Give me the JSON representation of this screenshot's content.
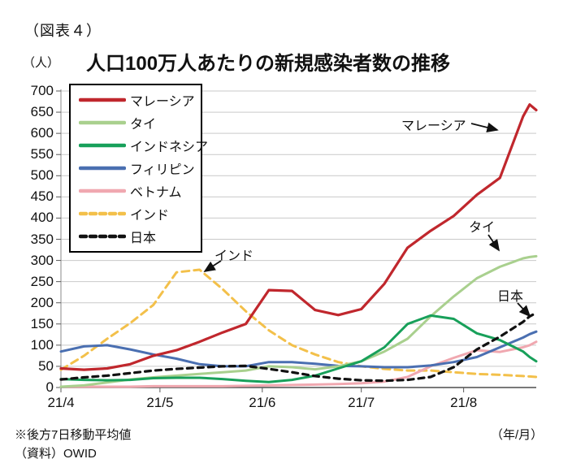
{
  "header": {
    "figure_label": "（図表４）",
    "unit_label": "（人）",
    "title": "人口100万人あたりの新規感染者数の推移"
  },
  "footnotes": {
    "note1": "※後方7日移動平均値",
    "note2": "（資料）OWID",
    "x_axis_unit": "（年/月）"
  },
  "chart_data": {
    "type": "line",
    "title": "人口100万人あたりの新規感染者数の推移",
    "ylabel": "（人）",
    "xlabel": "（年/月）",
    "ylim": [
      0,
      700
    ],
    "ytick_step": 50,
    "grid": true,
    "legend_position": "top-left",
    "x_dates": [
      "4/1",
      "4/8",
      "4/15",
      "4/22",
      "4/29",
      "5/6",
      "5/13",
      "5/20",
      "5/27",
      "6/3",
      "6/10",
      "6/17",
      "6/24",
      "7/1",
      "7/8",
      "7/15",
      "7/22",
      "7/29",
      "8/5",
      "8/12",
      "8/19",
      "8/21",
      "8/23"
    ],
    "x_day_offsets": [
      0,
      7,
      14,
      21,
      28,
      35,
      42,
      49,
      56,
      63,
      70,
      77,
      84,
      91,
      98,
      105,
      112,
      119,
      126,
      133,
      140,
      142,
      144
    ],
    "x_ticks": [
      {
        "label": "21/4",
        "day": 0
      },
      {
        "label": "21/5",
        "day": 30
      },
      {
        "label": "21/6",
        "day": 61
      },
      {
        "label": "21/7",
        "day": 91
      },
      {
        "label": "21/8",
        "day": 122
      }
    ],
    "series": [
      {
        "name": "マレーシア",
        "color": "#c0272d",
        "dash": null,
        "width": 3.2,
        "values": [
          45,
          42,
          45,
          55,
          75,
          88,
          108,
          130,
          150,
          230,
          228,
          183,
          171,
          185,
          245,
          330,
          370,
          405,
          455,
          495,
          640,
          668,
          655
        ]
      },
      {
        "name": "タイ",
        "color": "#a9d08e",
        "dash": null,
        "width": 3,
        "values": [
          2,
          5,
          12,
          19,
          24,
          28,
          32,
          36,
          40,
          50,
          48,
          43,
          50,
          62,
          85,
          115,
          168,
          215,
          258,
          285,
          305,
          308,
          310
        ]
      },
      {
        "name": "インドネシア",
        "color": "#18a05a",
        "dash": null,
        "width": 3,
        "values": [
          20,
          18,
          17,
          18,
          22,
          23,
          23,
          20,
          16,
          13,
          18,
          28,
          45,
          62,
          95,
          150,
          170,
          162,
          128,
          112,
          85,
          72,
          62
        ]
      },
      {
        "name": "フィリピン",
        "color": "#4a6fb1",
        "dash": null,
        "width": 3,
        "values": [
          85,
          97,
          100,
          90,
          78,
          68,
          55,
          50,
          50,
          60,
          60,
          56,
          51,
          50,
          48,
          48,
          52,
          60,
          72,
          95,
          118,
          126,
          132
        ]
      },
      {
        "name": "ベトナム",
        "color": "#f0a8b0",
        "dash": null,
        "width": 3,
        "values": [
          2,
          2,
          2,
          2,
          3,
          3,
          3,
          3,
          4,
          5,
          6,
          7,
          8,
          10,
          14,
          25,
          50,
          70,
          88,
          84,
          95,
          100,
          108
        ]
      },
      {
        "name": "インド",
        "color": "#f3c04a",
        "dash": "9 6",
        "width": 3,
        "values": [
          42,
          75,
          115,
          152,
          195,
          272,
          278,
          232,
          180,
          135,
          100,
          78,
          60,
          50,
          44,
          40,
          40,
          36,
          32,
          30,
          27,
          26,
          25
        ]
      },
      {
        "name": "日本",
        "color": "#111111",
        "dash": "7 6",
        "width": 3.2,
        "values": [
          19,
          24,
          28,
          34,
          40,
          44,
          47,
          50,
          51,
          44,
          36,
          27,
          21,
          17,
          16,
          18,
          25,
          48,
          90,
          120,
          155,
          168,
          176
        ]
      }
    ],
    "annotations": [
      {
        "text": "マレーシア",
        "series": "マレーシア"
      },
      {
        "text": "インド",
        "series": "インド"
      },
      {
        "text": "タイ",
        "series": "タイ"
      },
      {
        "text": "日本",
        "series": "日本"
      }
    ],
    "colors": {
      "grid": "#c9c9c9",
      "axis": "#595959",
      "text": "#111111"
    }
  }
}
